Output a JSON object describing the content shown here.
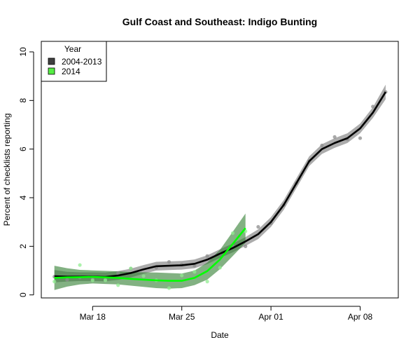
{
  "chart_data": {
    "type": "line",
    "title": "Gulf Coast and Southeast: Indigo Bunting",
    "xlabel": "Date",
    "ylabel": "Percent of checklists reporting",
    "ylim": [
      0,
      10
    ],
    "yticks": [
      "0",
      "2",
      "4",
      "6",
      "8",
      "10"
    ],
    "xticks": [
      {
        "label": "Mar 18",
        "day": 3
      },
      {
        "label": "Mar 25",
        "day": 10
      },
      {
        "label": "Apr 01",
        "day": 17
      },
      {
        "label": "Apr 08",
        "day": 24
      }
    ],
    "x_start_date": "Mar 15",
    "legend": {
      "title": "Year",
      "position": "top-left"
    },
    "grid": false,
    "series": [
      {
        "name": "2004-2013",
        "color": "#000000",
        "band_color": "#808080",
        "point_color": "#8c8c8c",
        "legend_color": "#404040",
        "days": [
          0,
          1,
          2,
          3,
          4,
          5,
          6,
          7,
          8,
          9,
          10,
          11,
          12,
          13,
          14,
          15,
          16,
          17,
          18,
          19,
          20,
          21,
          22,
          23,
          24,
          25,
          26
        ],
        "smooth": [
          0.77,
          0.75,
          0.75,
          0.75,
          0.74,
          0.8,
          0.9,
          1.05,
          1.18,
          1.2,
          1.22,
          1.28,
          1.45,
          1.7,
          1.93,
          2.2,
          2.5,
          3.0,
          3.7,
          4.6,
          5.5,
          6.0,
          6.25,
          6.45,
          6.85,
          7.5,
          8.35
        ],
        "band_halfwidth": [
          0.25,
          0.2,
          0.18,
          0.18,
          0.18,
          0.18,
          0.18,
          0.18,
          0.18,
          0.18,
          0.18,
          0.18,
          0.18,
          0.18,
          0.18,
          0.18,
          0.2,
          0.2,
          0.2,
          0.2,
          0.2,
          0.2,
          0.2,
          0.2,
          0.2,
          0.22,
          0.3
        ],
        "points": [
          0.75,
          0.62,
          0.72,
          0.66,
          0.65,
          0.9,
          1.08,
          0.75,
          1.12,
          1.36,
          1.25,
          1.2,
          1.6,
          1.7,
          2.0,
          2.0,
          2.8,
          2.95,
          3.7,
          4.6,
          5.5,
          6.15,
          6.5,
          6.4,
          6.45,
          7.75,
          8.35
        ]
      },
      {
        "name": "2014",
        "color": "#00ff00",
        "band_color": "#2e7d2e",
        "point_color": "#90ee90",
        "legend_color": "#55ee44",
        "days": [
          0,
          1,
          2,
          3,
          4,
          5,
          6,
          7,
          8,
          9,
          10,
          11,
          12,
          13,
          14,
          15
        ],
        "smooth": [
          0.7,
          0.72,
          0.73,
          0.74,
          0.72,
          0.7,
          0.66,
          0.63,
          0.6,
          0.58,
          0.58,
          0.7,
          0.98,
          1.46,
          2.1,
          2.75
        ],
        "band_halfwidth": [
          0.5,
          0.38,
          0.3,
          0.27,
          0.27,
          0.27,
          0.28,
          0.3,
          0.32,
          0.32,
          0.3,
          0.3,
          0.35,
          0.4,
          0.5,
          0.6
        ],
        "points": [
          0.55,
          null,
          1.23,
          0.6,
          0.6,
          0.4,
          1.09,
          0.77,
          0.6,
          0.28,
          0.8,
          0.95,
          0.55,
          1.12,
          2.54,
          2.62
        ]
      }
    ]
  }
}
